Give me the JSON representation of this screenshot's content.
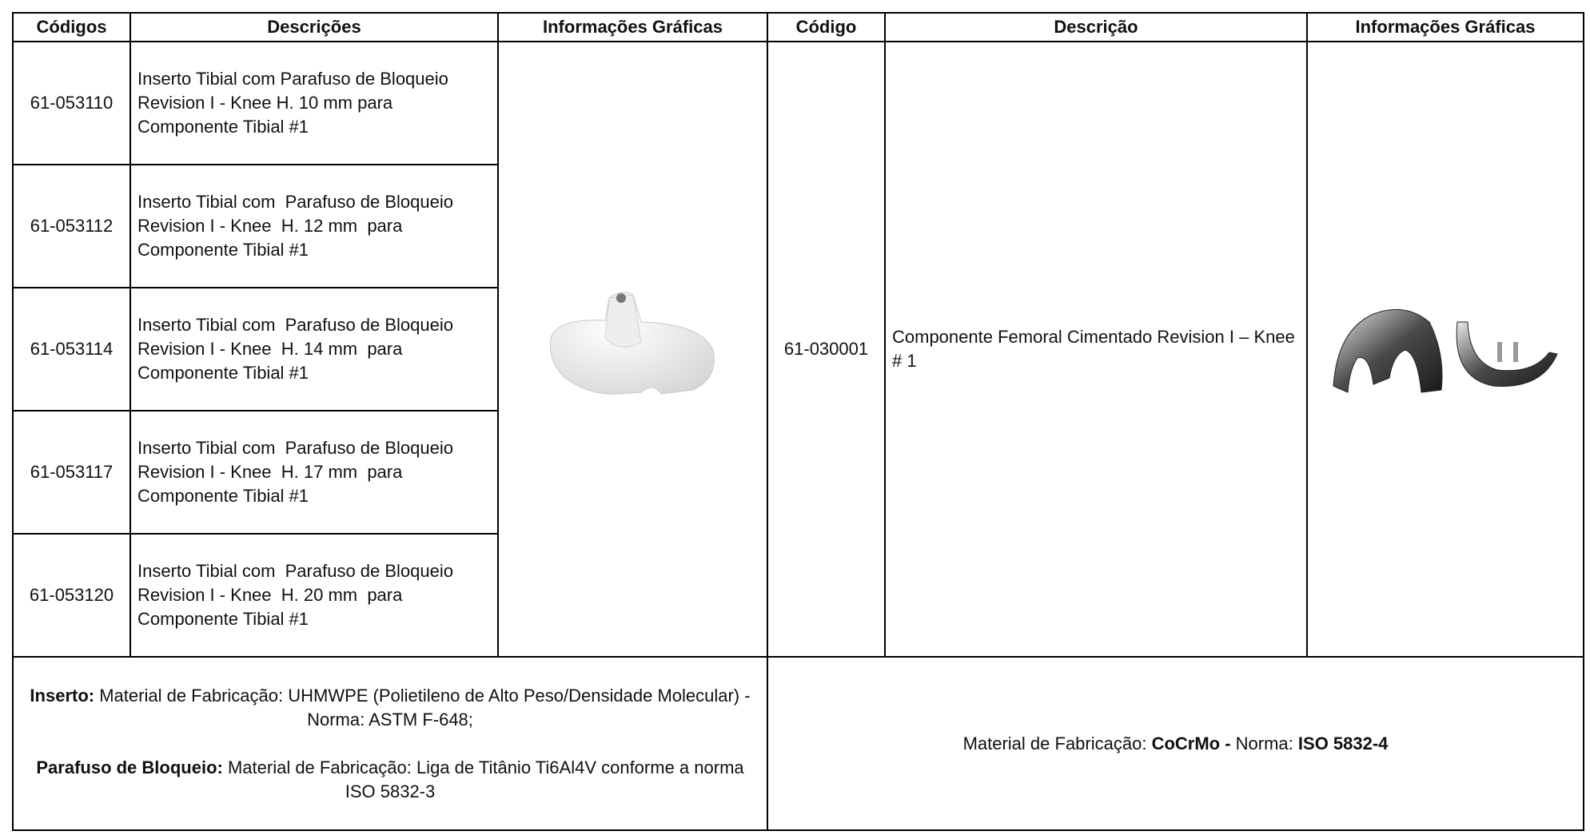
{
  "header": {
    "columns": [
      "Códigos",
      "Descrições",
      "Informações Gráficas",
      "Código",
      "Descrição",
      "Informações Gráficas"
    ]
  },
  "rows": [
    {
      "code": "61-053110",
      "description": "Inserto Tibial com Parafuso de Bloqueio Revision I - Knee H. 10 mm para Componente Tibial #1"
    },
    {
      "code": "61-053112",
      "description": "Inserto Tibial com  Parafuso de Bloqueio Revision I - Knee  H. 12 mm  para Componente Tibial #1"
    },
    {
      "code": "61-053114",
      "description": "Inserto Tibial com  Parafuso de Bloqueio Revision I - Knee  H. 14 mm  para Componente Tibial #1"
    },
    {
      "code": "61-053117",
      "description": "Inserto Tibial com  Parafuso de Bloqueio Revision I - Knee  H. 17 mm  para Componente Tibial #1"
    },
    {
      "code": "61-053120",
      "description": "Inserto Tibial com  Parafuso de Bloqueio Revision I - Knee  H. 20 mm  para Componente Tibial #1"
    }
  ],
  "femoral": {
    "code": "61-030001",
    "description": "Componente Femoral Cimentado Revision I – Knee # 1"
  },
  "footer": {
    "left": [
      {
        "bold": "Inserto:",
        "text": " Material de Fabricação: UHMWPE (Polietileno de Alto Peso/Densidade Molecular) - Norma: ASTM F-648;"
      },
      {
        "bold": "Parafuso de Bloqueio:",
        "text": " Material de Fabricação: Liga de Titânio Ti6Al4V conforme a norma ISO 5832-3"
      }
    ],
    "right": {
      "text1": "Material de Fabricação: ",
      "bold1": "CoCrMo -",
      "text2": " Norma: ",
      "bold2": "ISO 5832-4"
    }
  }
}
